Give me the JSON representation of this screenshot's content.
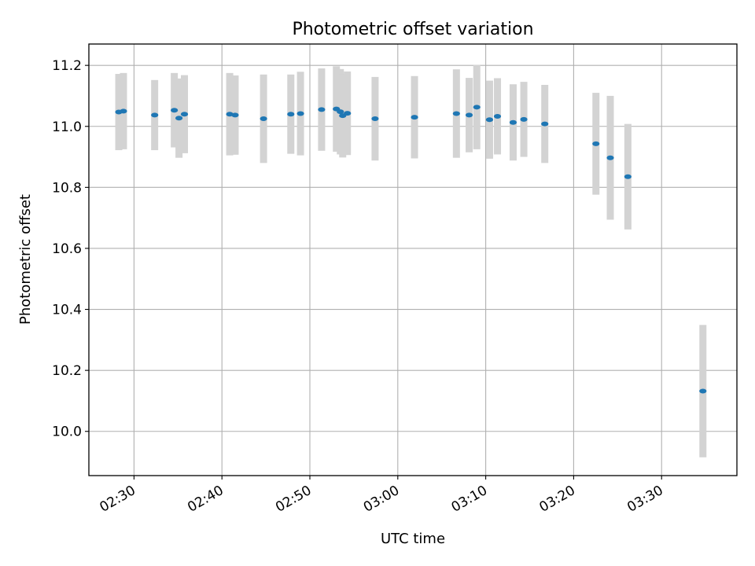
{
  "chart_data": {
    "type": "scatter",
    "title": "Photometric offset variation",
    "xlabel": "UTC time",
    "ylabel": "Photometric offset",
    "x_ticks": [
      "02:30",
      "02:40",
      "02:50",
      "03:00",
      "03:10",
      "03:20",
      "03:30"
    ],
    "y_ticks": [
      "10.0",
      "10.2",
      "10.4",
      "10.6",
      "10.8",
      "11.0",
      "11.2"
    ],
    "xlim": [
      "02:24:52",
      "03:38:34"
    ],
    "ylim": [
      9.855,
      11.27
    ],
    "grid": true,
    "errorbar_color": "#d3d3d3",
    "marker_color": "#1f77b4",
    "series": [
      {
        "x": [
          "02:28:16",
          "02:28:48",
          "02:32:21",
          "02:34:35",
          "02:35:07",
          "02:35:44",
          "02:40:53",
          "02:41:30",
          "02:44:44",
          "02:47:50",
          "02:48:56",
          "02:51:20",
          "02:53:01",
          "02:53:28",
          "02:53:44",
          "02:54:16",
          "02:57:25",
          "03:01:54",
          "03:06:40",
          "03:08:07",
          "03:08:59",
          "03:10:26",
          "03:11:20",
          "03:13:07",
          "03:14:20",
          "03:16:43",
          "03:22:32",
          "03:24:10",
          "03:26:10",
          "03:34:42"
        ],
        "y": [
          11.047,
          11.05,
          11.037,
          11.053,
          11.027,
          11.04,
          11.04,
          11.037,
          11.025,
          11.04,
          11.042,
          11.055,
          11.057,
          11.048,
          11.035,
          11.043,
          11.025,
          11.03,
          11.042,
          11.037,
          11.063,
          11.022,
          11.033,
          11.013,
          11.023,
          11.008,
          10.943,
          10.897,
          10.835,
          10.132
        ],
        "err": [
          0.125,
          0.125,
          0.115,
          0.122,
          0.13,
          0.128,
          0.135,
          0.13,
          0.145,
          0.13,
          0.137,
          0.135,
          0.14,
          0.14,
          0.137,
          0.137,
          0.137,
          0.135,
          0.145,
          0.122,
          0.138,
          0.128,
          0.125,
          0.125,
          0.123,
          0.128,
          0.167,
          0.203,
          0.173,
          0.217
        ]
      }
    ]
  }
}
